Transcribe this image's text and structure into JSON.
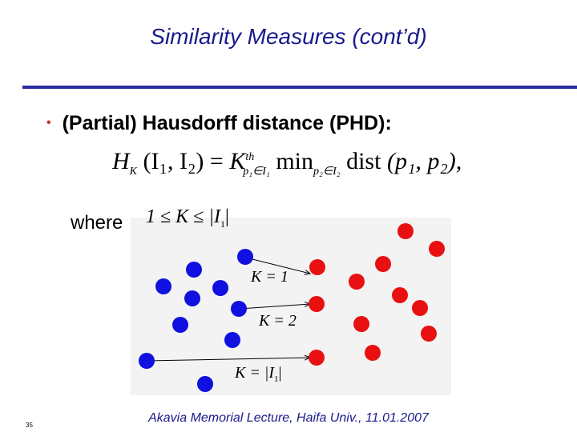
{
  "slide": {
    "title": "Similarity Measures (cont’d)",
    "bullet_marker": "•",
    "bullet_text": "(Partial) Hausdorff distance (PHD):",
    "where_label": "where",
    "footer": "Akavia Memorial Lecture, Haifa Univ., 11.01.2007",
    "page_number": "35"
  },
  "formula": {
    "lhs_H": "H",
    "lhs_sub": "K",
    "lhs_args": "(I₁, I₂)",
    "equals": "=",
    "rhs_K": "K",
    "rhs_sup": "th",
    "rhs_sub": "p₁∈I₁",
    "min_word": "min",
    "min_sub": "p₂∈I₂",
    "dist_word": "dist",
    "dist_args": "(p₁, p₂),"
  },
  "constraint": {
    "text": "1 ≤ K ≤ |I",
    "sub": "1",
    "close": "|"
  },
  "diagram": {
    "labels": {
      "k1": "K = 1",
      "k2": "K = 2",
      "k_full": "K = |I",
      "k_full_sub": "1",
      "k_full_close": "|"
    },
    "colors": {
      "blue": "#1010e0",
      "red": "#e81010",
      "background": "#f3f3f3"
    }
  }
}
